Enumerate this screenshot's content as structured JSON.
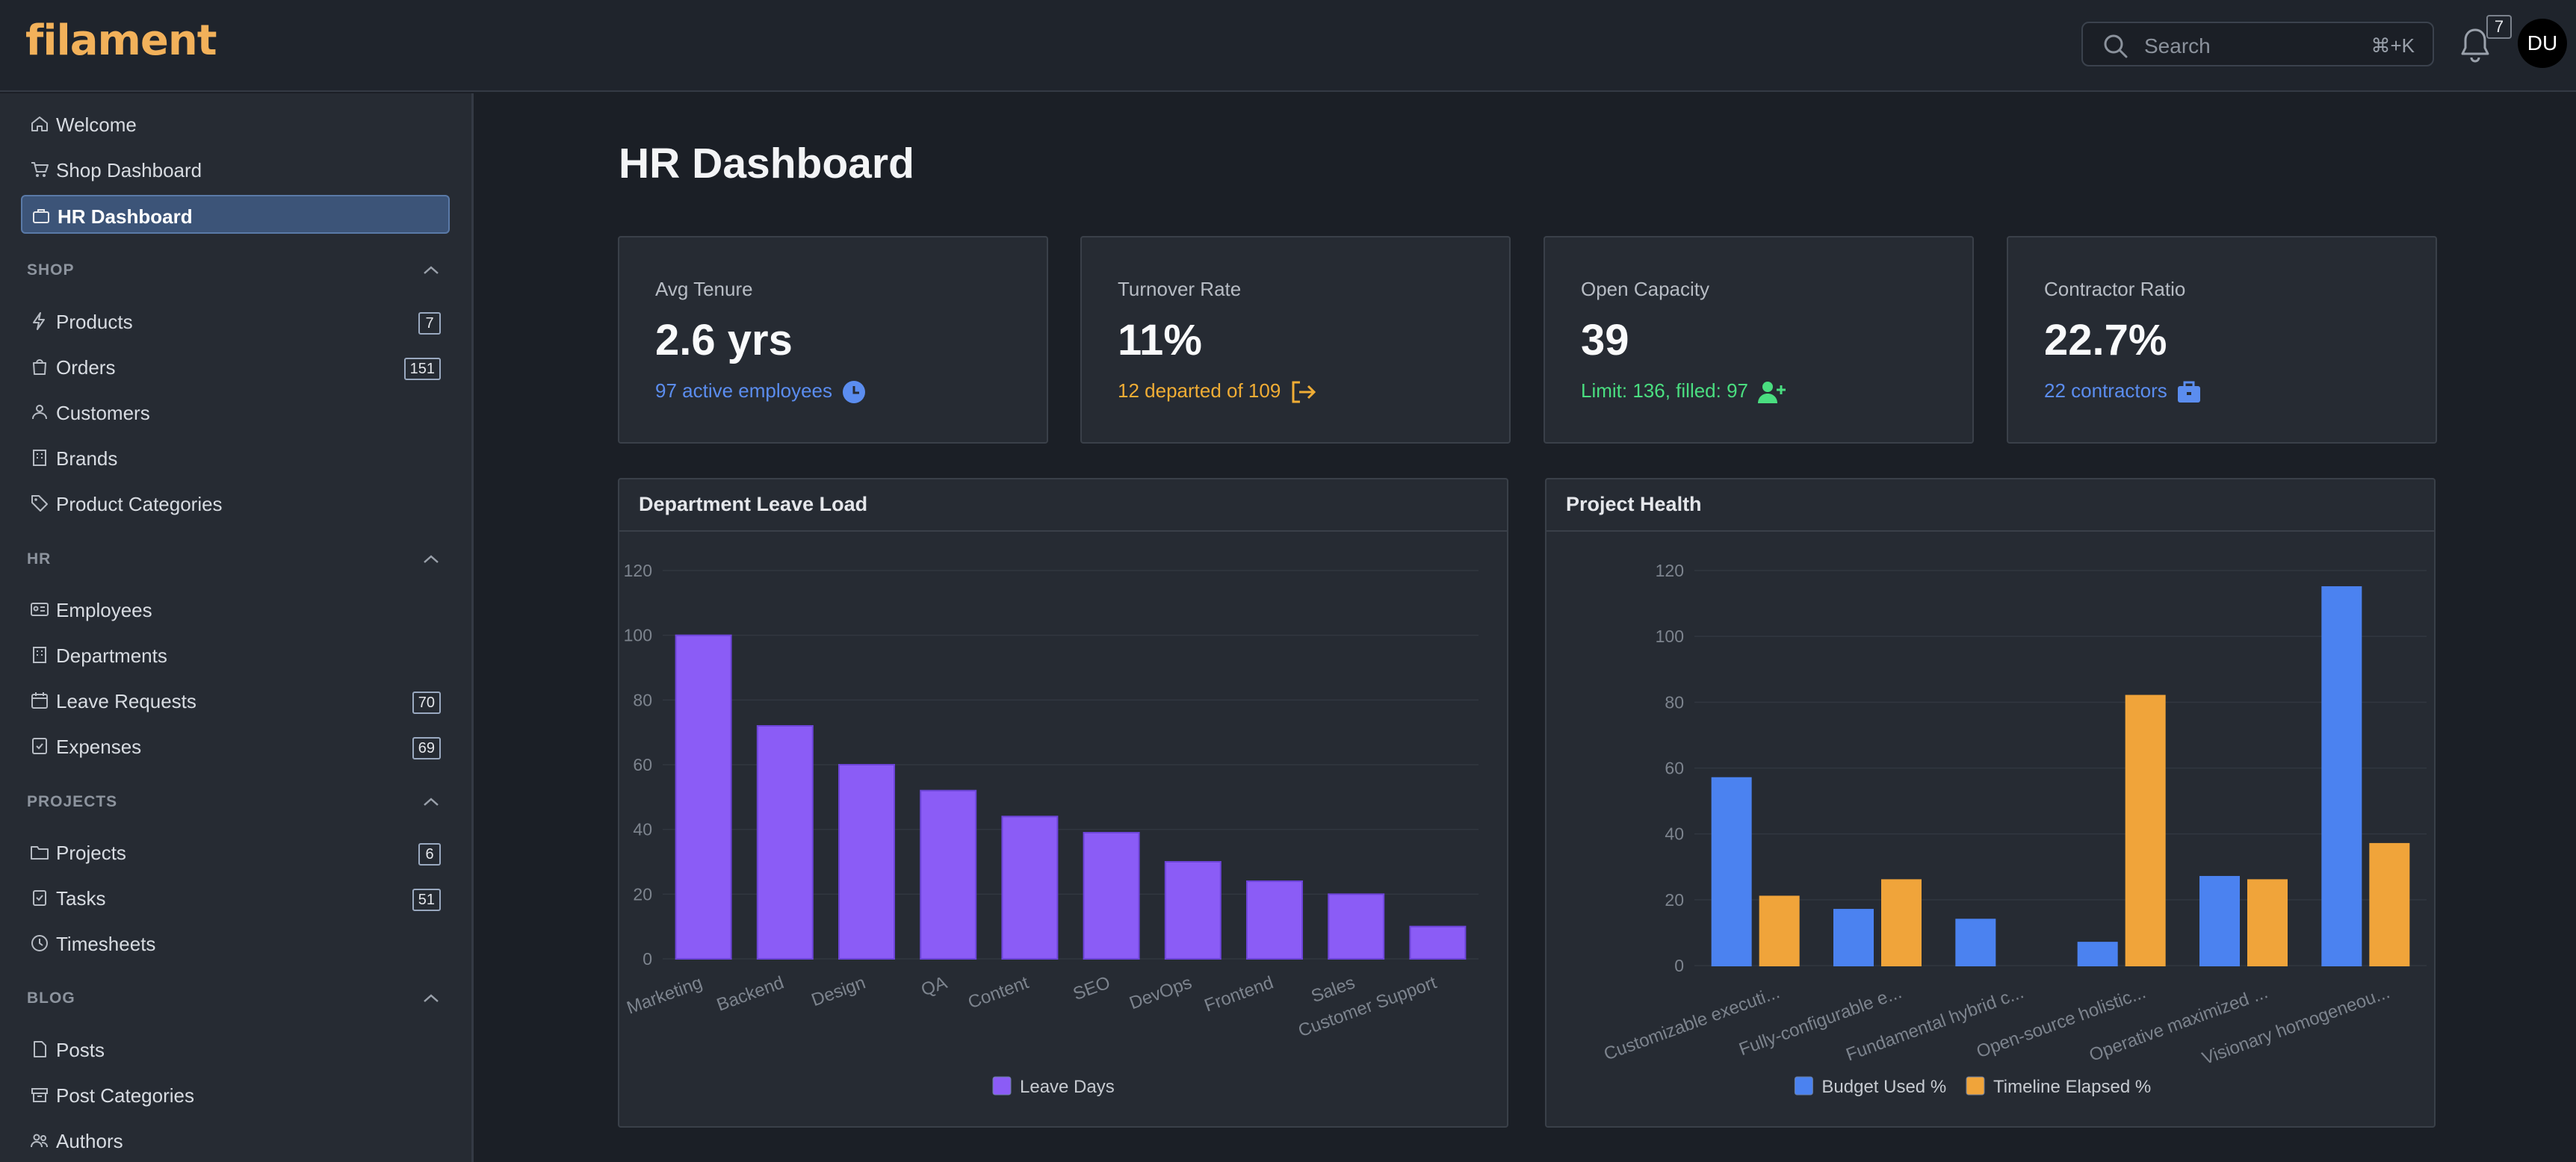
{
  "app": {
    "logo": "filament"
  },
  "topbar": {
    "search_placeholder": "Search",
    "search_shortcut": "⌘+K",
    "notifications_count": "7",
    "avatar_initials": "DU"
  },
  "sidebar": {
    "top_items": [
      {
        "label": "Welcome",
        "icon": "home-icon"
      },
      {
        "label": "Shop Dashboard",
        "icon": "cart-icon"
      },
      {
        "label": "HR Dashboard",
        "icon": "briefcase-icon",
        "active": true
      }
    ],
    "groups": [
      {
        "label": "SHOP",
        "items": [
          {
            "label": "Products",
            "badge": "7"
          },
          {
            "label": "Orders",
            "badge": "151"
          },
          {
            "label": "Customers"
          },
          {
            "label": "Brands"
          },
          {
            "label": "Product Categories"
          }
        ]
      },
      {
        "label": "HR",
        "items": [
          {
            "label": "Employees"
          },
          {
            "label": "Departments"
          },
          {
            "label": "Leave Requests",
            "badge": "70"
          },
          {
            "label": "Expenses",
            "badge": "69"
          }
        ]
      },
      {
        "label": "PROJECTS",
        "items": [
          {
            "label": "Projects",
            "badge": "6"
          },
          {
            "label": "Tasks",
            "badge": "51"
          },
          {
            "label": "Timesheets"
          }
        ]
      },
      {
        "label": "BLOG",
        "items": [
          {
            "label": "Posts"
          },
          {
            "label": "Post Categories"
          },
          {
            "label": "Authors"
          }
        ]
      }
    ]
  },
  "main": {
    "title": "HR Dashboard",
    "stats": [
      {
        "label": "Avg Tenure",
        "value": "2.6 yrs",
        "desc": "97 active employees",
        "color": "#5b8def",
        "icon": "clock-icon"
      },
      {
        "label": "Turnover Rate",
        "value": "11%",
        "desc": "12 departed of 109",
        "color": "#f0ad35",
        "icon": "logout-icon"
      },
      {
        "label": "Open Capacity",
        "value": "39",
        "desc": "Limit: 136, filled: 97",
        "color": "#4ade80",
        "icon": "user-plus-icon"
      },
      {
        "label": "Contractor Ratio",
        "value": "22.7%",
        "desc": "22 contractors",
        "color": "#5b8def",
        "icon": "briefcase-icon"
      }
    ],
    "panels": [
      {
        "title": "Department Leave Load"
      },
      {
        "title": "Project Health"
      }
    ]
  },
  "chart_data": [
    {
      "type": "bar",
      "categories": [
        "Marketing",
        "Backend",
        "Design",
        "QA",
        "Content",
        "SEO",
        "DevOps",
        "Frontend",
        "Sales",
        "Customer Support"
      ],
      "series": [
        {
          "name": "Leave Days",
          "values": [
            100,
            72,
            60,
            52,
            44,
            39,
            30,
            24,
            20,
            10
          ],
          "color": "#8b5cf6"
        }
      ],
      "yticks": [
        "0",
        "20",
        "40",
        "60",
        "80",
        "100",
        "120"
      ],
      "ylim": [
        0,
        120
      ],
      "legend": "bottom"
    },
    {
      "type": "bar",
      "categories": [
        "Customizable executi...",
        "Fully-configurable e...",
        "Fundamental hybrid c...",
        "Open-source holistic...",
        "Operative maximized ...",
        "Visionary homogeneou..."
      ],
      "series": [
        {
          "name": "Budget Used %",
          "values": [
            57,
            17,
            14,
            7,
            27,
            115
          ],
          "color": "#4b82f0"
        },
        {
          "name": "Timeline Elapsed %",
          "values": [
            21,
            26,
            0,
            82,
            26,
            37
          ],
          "color": "#f0a43a"
        }
      ],
      "yticks": [
        "0",
        "20",
        "40",
        "60",
        "80",
        "100",
        "120"
      ],
      "ylim": [
        0,
        120
      ],
      "legend": "bottom"
    }
  ]
}
